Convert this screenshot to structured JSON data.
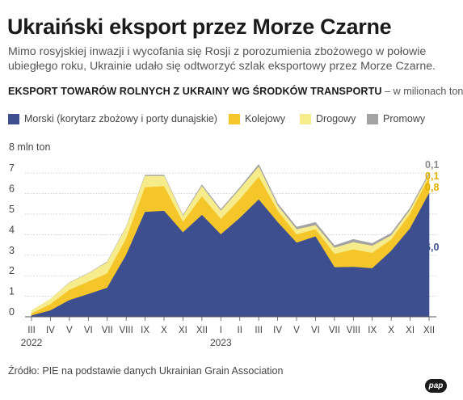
{
  "header": {
    "title": "Ukraiński eksport przez Morze Czarne",
    "subtitle": "Mimo rosyjskiej inwazji i wycofania się Rosji z porozumienia zbożowego w połowie ubiegłego roku, Ukrainie udało się odtworzyć szlak eksportowy przez Morze Czarne.",
    "chart_heading": "EKSPORT TOWARÓW ROLNYCH Z UKRAINY WG ŚRODKÓW TRANSPORTU",
    "chart_unit": " – w milionach ton"
  },
  "legend": [
    {
      "label": "Morski (korytarz zbożowy i porty dunajskie)",
      "color": "#3d4f8f"
    },
    {
      "label": "Kolejowy",
      "color": "#f5c629"
    },
    {
      "label": "Drogowy",
      "color": "#f7ec8c"
    },
    {
      "label": "Promowy",
      "color": "#a3a3a3"
    }
  ],
  "footer": {
    "source": "Źródło: PIE na podstawie danych Ukrainian Grain Association",
    "logo": "pap"
  },
  "chart_data": {
    "type": "area",
    "stacked": true,
    "ylabel": "8 mln ton",
    "ylim": [
      0,
      8
    ],
    "yticks": [
      0,
      1,
      2,
      3,
      4,
      5,
      6,
      7
    ],
    "categories": [
      "III",
      "IV",
      "V",
      "VI",
      "VII",
      "VIII",
      "IX",
      "X",
      "XI",
      "XII",
      "I",
      "II",
      "III",
      "IV",
      "V",
      "VI",
      "VII",
      "VIII",
      "IX",
      "X",
      "XI",
      "XII"
    ],
    "year_labels": [
      {
        "label": "2022",
        "index": 0
      },
      {
        "label": "2023",
        "index": 10
      }
    ],
    "series": [
      {
        "name": "Morski (korytarz zbożowy i porty dunajskie)",
        "color": "#3d4f8f",
        "values": [
          0.05,
          0.3,
          0.8,
          1.1,
          1.4,
          3.0,
          5.1,
          5.15,
          4.1,
          4.95,
          4.0,
          4.8,
          5.7,
          4.6,
          3.6,
          3.9,
          2.4,
          2.42,
          2.35,
          3.2,
          4.3,
          6.0
        ]
      },
      {
        "name": "Kolejowy",
        "color": "#f5c629",
        "values": [
          0.1,
          0.3,
          0.5,
          0.6,
          0.7,
          0.8,
          1.2,
          1.2,
          0.5,
          0.9,
          0.75,
          0.9,
          1.1,
          0.55,
          0.4,
          0.35,
          0.65,
          0.85,
          0.75,
          0.55,
          0.7,
          0.8
        ]
      },
      {
        "name": "Drogowy",
        "color": "#f7ec8c",
        "values": [
          0.15,
          0.25,
          0.35,
          0.4,
          0.55,
          0.55,
          0.55,
          0.5,
          0.3,
          0.5,
          0.4,
          0.5,
          0.5,
          0.25,
          0.25,
          0.2,
          0.3,
          0.35,
          0.35,
          0.2,
          0.2,
          0.1
        ]
      },
      {
        "name": "Promowy",
        "color": "#a3a3a3",
        "values": [
          0.0,
          0.0,
          0.02,
          0.02,
          0.03,
          0.03,
          0.05,
          0.05,
          0.05,
          0.08,
          0.08,
          0.08,
          0.12,
          0.12,
          0.12,
          0.15,
          0.12,
          0.15,
          0.12,
          0.12,
          0.1,
          0.1
        ]
      }
    ],
    "end_labels": [
      {
        "text": "0,1",
        "color": "#8c8c8c"
      },
      {
        "text": "0,1",
        "color": "#e0b000"
      },
      {
        "text": "0,8",
        "color": "#e0b000"
      },
      {
        "text": "6,0",
        "color": "#3d4f8f"
      }
    ]
  }
}
